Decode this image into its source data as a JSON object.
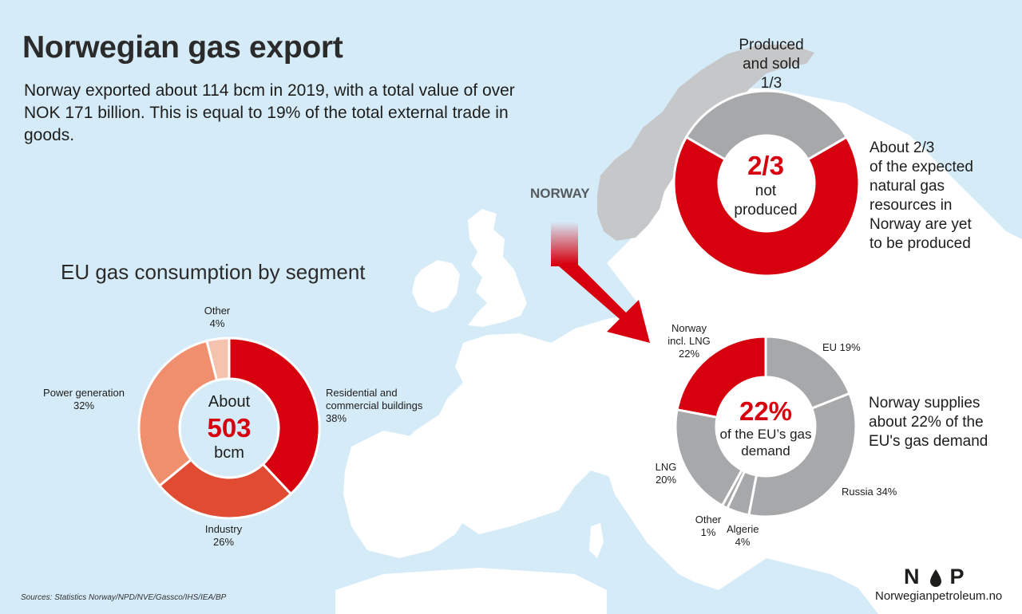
{
  "title": "Norwegian gas export",
  "intro": "Norway exported about 114 bcm in 2019, with a total value of over NOK 171 billion. This is equal to 19% of the total external trade in goods.",
  "norway_label": "NORWAY",
  "sources": "Sources: Statistics Norway/NPD/NVE/Gassco/IHS/IEA/BP",
  "logo": {
    "letter_left": "N",
    "letter_right": "P",
    "site": "Norwegianpetroleum.no"
  },
  "colors": {
    "red": "#d6000f",
    "grey": "#a7a8aa",
    "residential": "#d6000f",
    "industry": "#e14b31",
    "power": "#ef8f6e",
    "other": "#f5c3ad",
    "water": "#d6ebf8",
    "land": "#ffffff"
  },
  "chart_data": [
    {
      "type": "pie",
      "id": "resources",
      "categories": [
        "Produced and sold",
        "Not produced"
      ],
      "values": [
        0.3333,
        0.6667
      ],
      "labels": {
        "produced": "Produced\nand sold\n1/3",
        "center_value": "2/3",
        "center_text": "not\nproduced",
        "annotation": "About 2/3\nof the expected\nnatural gas\nresources in\nNorway are yet\nto be produced"
      }
    },
    {
      "type": "pie",
      "id": "eu-segments",
      "title": "EU gas consumption by segment",
      "categories": [
        "Residential and commercial buildings",
        "Industry",
        "Power generation",
        "Other"
      ],
      "values": [
        38,
        26,
        32,
        4
      ],
      "labels": {
        "residential": "Residential and\ncommercial buildings\n38%",
        "industry": "Industry\n26%",
        "power": "Power generation\n32%",
        "other": "Other\n4%",
        "center_top": "About",
        "center_value": "503",
        "center_bottom": "bcm"
      }
    },
    {
      "type": "pie",
      "id": "eu-supply",
      "categories": [
        "Norway incl. LNG",
        "EU",
        "Russia",
        "Algerie",
        "Other",
        "LNG"
      ],
      "values": [
        22,
        19,
        34,
        4,
        1,
        20
      ],
      "labels": {
        "norway": "Norway\nincl. LNG\n22%",
        "eu": "EU 19%",
        "russia": "Russia 34%",
        "algerie": "Algerie\n4%",
        "other": "Other\n1%",
        "lng": "LNG\n20%",
        "center_value": "22%",
        "center_text": "of the EU’s gas\ndemand",
        "annotation": "Norway supplies\nabout 22% of the\nEU's gas demand"
      }
    }
  ]
}
